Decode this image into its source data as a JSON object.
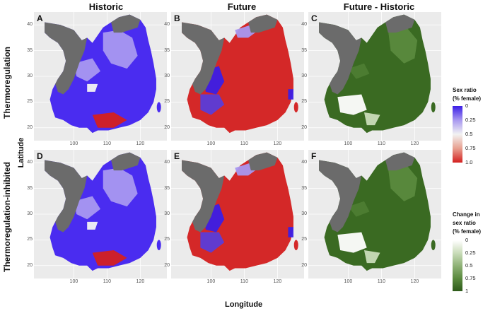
{
  "columns": [
    "Historic",
    "Future",
    "Future - Historic"
  ],
  "rows": [
    "Thermoregulation",
    "Thermoregulation-inhibited"
  ],
  "panels": [
    {
      "label": "A",
      "scheme": "historic"
    },
    {
      "label": "B",
      "scheme": "future"
    },
    {
      "label": "C",
      "scheme": "diff"
    },
    {
      "label": "D",
      "scheme": "historic"
    },
    {
      "label": "E",
      "scheme": "future"
    },
    {
      "label": "F",
      "scheme": "diff"
    }
  ],
  "axes": {
    "xlabel": "Longitude",
    "ylabel": "Latitude",
    "yticks": [
      "40",
      "35",
      "30",
      "25",
      "20"
    ],
    "xticks": [
      "100",
      "110",
      "120"
    ]
  },
  "legend_sex_ratio": {
    "title_line1": "Sex ratio",
    "title_line2": "(% female)",
    "ticks": [
      "0",
      "0.25",
      "0.5",
      "0.75",
      "1.0"
    ],
    "colors": [
      "#3b1ee6",
      "#a898f0",
      "#f2f2f2",
      "#e8a090",
      "#d42020"
    ]
  },
  "legend_change": {
    "title_line1": "Change in",
    "title_line2": "sex ratio",
    "title_line3": "(% female)",
    "ticks": [
      "0",
      "0.25",
      "0.5",
      "0.75",
      "1"
    ],
    "colors": [
      "#ffffff",
      "#c9dcb9",
      "#8fb277",
      "#5a8a3e",
      "#2d5a1a"
    ]
  },
  "colors": {
    "land_gray": "#6b6b6b",
    "panel_bg": "#ebebeb"
  }
}
